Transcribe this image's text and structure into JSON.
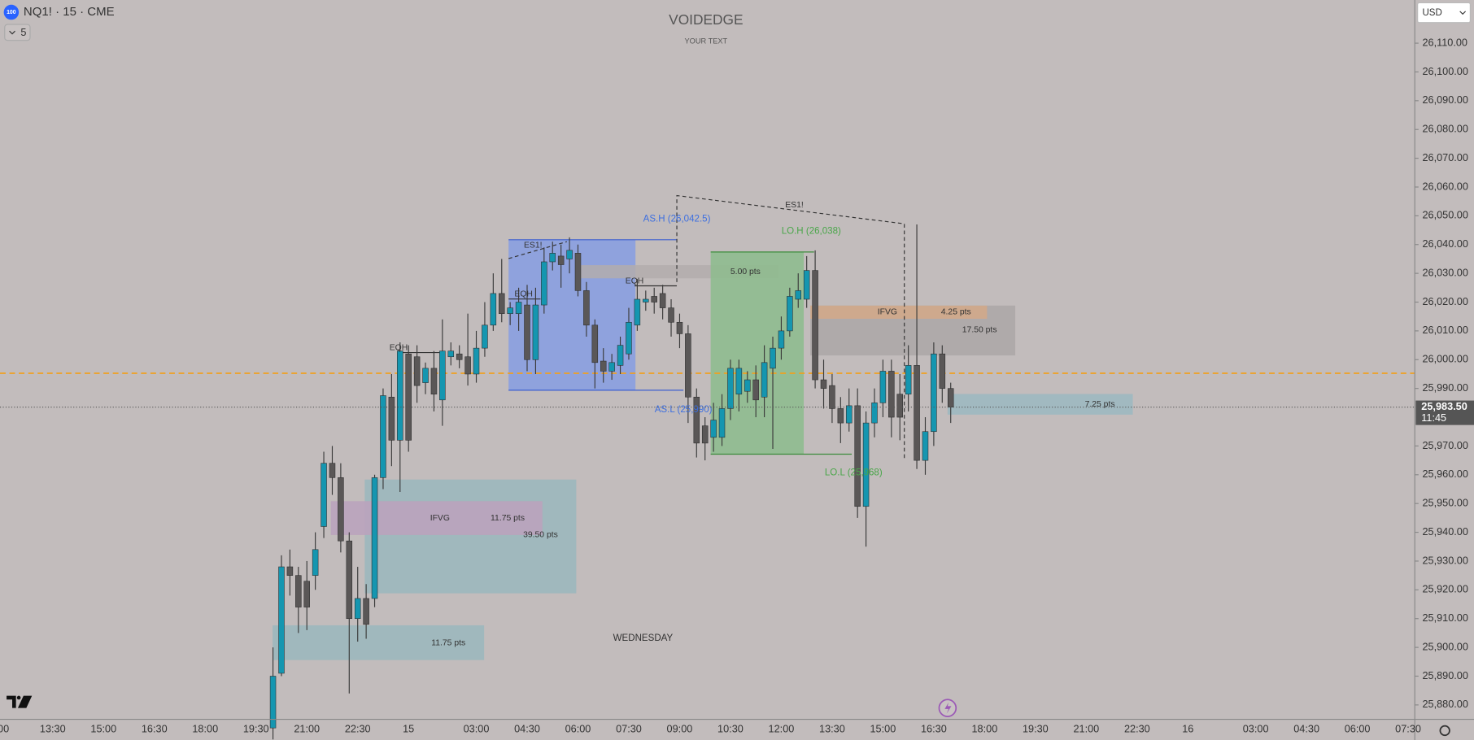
{
  "chart_data": {
    "type": "candlestick",
    "title": "VOIDEDGE",
    "subtitle": "YOUR TEXT",
    "symbol_badge": "100",
    "symbol": "NQ1! · 15 · CME",
    "interval_button": "5",
    "currency": "USD",
    "up_color": "#1596b0",
    "down_color": "#5a5757",
    "wick_color": "#3a3a3a",
    "ylim": [
      25875,
      26125
    ],
    "yticks": [
      {
        "value": 25880,
        "label": "25,880.00"
      },
      {
        "value": 25890,
        "label": "25,890.00"
      },
      {
        "value": 25900,
        "label": "25,900.00"
      },
      {
        "value": 25910,
        "label": "25,910.00"
      },
      {
        "value": 25920,
        "label": "25,920.00"
      },
      {
        "value": 25930,
        "label": "25,930.00"
      },
      {
        "value": 25940,
        "label": "25,940.00"
      },
      {
        "value": 25950,
        "label": "25,950.00"
      },
      {
        "value": 25960,
        "label": "25,960.00"
      },
      {
        "value": 25970,
        "label": "25,970.00"
      },
      {
        "value": 25990,
        "label": "25,990.00"
      },
      {
        "value": 26000,
        "label": "26,000.00"
      },
      {
        "value": 26010,
        "label": "26,010.00"
      },
      {
        "value": 26020,
        "label": "26,020.00"
      },
      {
        "value": 26030,
        "label": "26,030.00"
      },
      {
        "value": 26040,
        "label": "26,040.00"
      },
      {
        "value": 26050,
        "label": "26,050.00"
      },
      {
        "value": 26060,
        "label": "26,060.00"
      },
      {
        "value": 26070,
        "label": "26,070.00"
      },
      {
        "value": 26080,
        "label": "26,080.00"
      },
      {
        "value": 26090,
        "label": "26,090.00"
      },
      {
        "value": 26100,
        "label": "26,100.00"
      },
      {
        "value": 26110,
        "label": "26,110.00"
      }
    ],
    "last_price": {
      "value": 25983.5,
      "label": "25,983.50"
    },
    "countdown": "11:45",
    "categories": [
      ":00",
      null,
      null,
      null,
      null,
      null,
      "13:30",
      null,
      null,
      null,
      null,
      null,
      "15:00",
      null,
      null,
      null,
      null,
      null,
      "16:30",
      null,
      null,
      null,
      null,
      null,
      "18:00",
      null,
      null,
      null,
      null,
      null,
      "19:30",
      null,
      null,
      null,
      null,
      null,
      "21:00",
      null,
      null,
      null,
      null,
      null,
      "22:30",
      null,
      null,
      null,
      null,
      null,
      "15",
      null,
      null,
      null,
      null,
      null,
      null,
      null,
      "03:00",
      null,
      null,
      null,
      null,
      null,
      "04:30",
      null,
      null,
      null,
      null,
      null,
      "06:00",
      null,
      null,
      null,
      null,
      null,
      "07:30",
      null,
      null,
      null,
      null,
      null,
      "09:00",
      null,
      null,
      null,
      null,
      null,
      "10:30",
      null,
      null,
      null,
      null,
      null,
      "12:00",
      null,
      null,
      null,
      null,
      null,
      "13:30",
      null,
      null,
      null,
      null,
      null,
      "15:00",
      null,
      null,
      null,
      null,
      null,
      "16:30",
      null,
      null,
      null,
      null,
      null,
      "18:00",
      null,
      null,
      null,
      null,
      null,
      "19:30",
      null,
      null,
      null,
      null,
      null,
      "21:00",
      null,
      null,
      null,
      null,
      null,
      "22:30",
      null,
      null,
      null,
      null,
      null,
      "16",
      null,
      null,
      null,
      null,
      null,
      null,
      null,
      "03:00",
      null,
      null,
      null,
      null,
      null,
      "04:30",
      null,
      null,
      null,
      null,
      null,
      "06:00",
      null,
      null,
      null,
      null,
      null,
      "07:30"
    ],
    "open": [
      null,
      null,
      null,
      null,
      null,
      null,
      null,
      null,
      null,
      null,
      null,
      null,
      null,
      null,
      null,
      null,
      null,
      null,
      null,
      null,
      null,
      null,
      null,
      null,
      null,
      null,
      null,
      null,
      null,
      null,
      null,
      null,
      25872,
      25891,
      25928,
      25925,
      25923,
      25925,
      25942,
      25964,
      25959,
      25937,
      25910,
      25917,
      25917,
      25959,
      25987,
      25972,
      26002,
      26001,
      25992,
      25997,
      25986,
      26001,
      26002,
      26001,
      25995,
      26004,
      26012,
      26023,
      26016,
      26016,
      26019,
      26000,
      26019,
      26034,
      26036,
      26035,
      26037,
      26024,
      26012,
      25999.5,
      25996,
      25998,
      26002,
      26012,
      26020,
      26022,
      26023,
      26018,
      26013,
      26009,
      25987,
      25977,
      25973,
      25973,
      25983,
      25988,
      25989,
      25993,
      25987,
      25997,
      26004,
      26010,
      26021,
      26021,
      26031,
      25993,
      25991,
      25983,
      25978,
      25984,
      25949,
      25978,
      25985,
      25996,
      25988,
      25988,
      25998,
      25965,
      25975,
      26002,
      25990,
      null,
      null,
      null,
      null,
      null,
      null,
      null,
      null,
      null,
      null,
      null,
      null,
      null,
      null,
      null,
      null,
      null,
      null,
      null,
      null,
      null,
      null,
      null,
      null,
      null,
      null,
      null,
      null,
      null,
      null,
      null,
      null,
      null,
      null,
      null,
      null,
      null,
      null,
      null,
      null,
      null,
      null,
      null,
      null,
      null,
      null,
      null,
      null,
      null,
      null,
      null,
      null,
      null,
      null
    ],
    "high": [
      null,
      null,
      null,
      null,
      null,
      null,
      null,
      null,
      null,
      null,
      null,
      null,
      null,
      null,
      null,
      null,
      null,
      null,
      null,
      null,
      null,
      null,
      null,
      null,
      null,
      null,
      null,
      null,
      null,
      null,
      null,
      null,
      25900,
      25932,
      25934,
      25928,
      25930,
      25940,
      25968,
      25970,
      25964,
      25940,
      25928,
      25922,
      25960,
      25990,
      25995,
      26006,
      26005,
      26005,
      25999,
      26003,
      26014,
      26006,
      26005,
      26016,
      26010,
      26020,
      26030,
      26035,
      26020,
      26025,
      26026,
      26025,
      26039,
      26041,
      26040,
      26042.5,
      26040,
      26027,
      26014,
      26004,
      26002,
      26008,
      26018,
      26028,
      26024,
      26025,
      26026,
      26021,
      26016,
      26012,
      25990,
      25980,
      25985,
      25988,
      26000,
      26000,
      25996,
      25998,
      26005,
      26008,
      26015,
      26025,
      26030,
      26036,
      26038,
      26000,
      25995,
      25987,
      25990,
      25990,
      25982,
      25990,
      26000,
      26000,
      25995,
      26005,
      26047,
      25980,
      26006,
      26005,
      25992,
      null,
      null,
      null,
      null,
      null,
      null,
      null,
      null,
      null,
      null,
      null,
      null,
      null,
      null,
      null,
      null,
      null,
      null,
      null,
      null,
      null,
      null,
      null,
      null,
      null,
      null,
      null,
      null,
      null,
      null,
      null,
      null,
      null,
      null,
      null,
      null,
      null,
      null,
      null,
      null,
      null,
      null,
      null,
      null,
      null,
      null,
      null,
      null,
      null,
      null,
      null,
      null,
      null,
      null
    ],
    "low": [
      null,
      null,
      null,
      null,
      null,
      null,
      null,
      null,
      null,
      null,
      null,
      null,
      null,
      null,
      null,
      null,
      null,
      null,
      null,
      null,
      null,
      null,
      null,
      null,
      null,
      null,
      null,
      null,
      null,
      null,
      null,
      null,
      25868,
      25890,
      25918,
      25905,
      25906,
      25920,
      25938,
      25953,
      25933,
      25884,
      25902,
      25903,
      25914,
      25955,
      25963,
      25954,
      25968,
      25985,
      25988,
      25982,
      25977,
      25998,
      25997,
      25991,
      25992,
      26001,
      26010,
      26013,
      26012,
      26010,
      25996,
      25995,
      26016,
      26031,
      26025,
      26030,
      26022,
      26008,
      25990,
      25992,
      25993,
      25995,
      26000,
      26010,
      26017,
      26016,
      26014,
      26008,
      26004,
      25978,
      25966,
      25965,
      25968,
      25970,
      25979,
      25982,
      25985,
      25980,
      25980,
      25969,
      26000,
      26008,
      26018,
      26018,
      25990,
      25983,
      25978,
      25971,
      25975,
      25945,
      25935,
      25973,
      25980,
      25973,
      25972,
      25982,
      25962,
      25960,
      25970,
      25985,
      25978,
      null,
      null,
      null,
      null,
      null,
      null,
      null,
      null,
      null,
      null,
      null,
      null,
      null,
      null,
      null,
      null,
      null,
      null,
      null,
      null,
      null,
      null,
      null,
      null,
      null,
      null,
      null,
      null,
      null,
      null,
      null,
      null,
      null,
      null,
      null,
      null,
      null,
      null,
      null,
      null,
      null,
      null,
      null,
      null,
      null,
      null,
      null,
      null,
      null,
      null,
      null,
      null,
      null,
      null
    ],
    "close": [
      null,
      null,
      null,
      null,
      null,
      null,
      null,
      null,
      null,
      null,
      null,
      null,
      null,
      null,
      null,
      null,
      null,
      null,
      null,
      null,
      null,
      null,
      null,
      null,
      null,
      null,
      null,
      null,
      null,
      null,
      null,
      null,
      25890,
      25928,
      25925,
      25914,
      25914,
      25934,
      25964,
      25959,
      25937,
      25910,
      25917,
      25908,
      25959,
      25987.5,
      25972,
      26003,
      25972,
      25991,
      25997,
      25988,
      26003,
      26003,
      26000,
      25995,
      26004,
      26012,
      26023,
      26016,
      26018,
      26020,
      26000,
      26019,
      26034,
      26037,
      26033,
      26038,
      26024,
      26012,
      25999,
      25996,
      25999,
      26005,
      26013,
      26021,
      26021,
      26020,
      26018,
      26013,
      26009,
      25987,
      25971,
      25971,
      25979,
      25983,
      25997,
      25997,
      25993,
      25986,
      25999,
      26004,
      26010,
      26022,
      26024,
      26031,
      25993,
      25990,
      25983,
      25978,
      25984,
      25949,
      25978,
      25985,
      25996,
      25980,
      25980,
      25998,
      25965,
      25975,
      26002,
      25990,
      25983.5,
      null,
      null,
      null,
      null,
      null,
      null,
      null,
      null,
      null,
      null,
      null,
      null,
      null,
      null,
      null,
      null,
      null,
      null,
      null,
      null,
      null,
      null,
      null,
      null,
      null,
      null,
      null,
      null,
      null,
      null,
      null,
      null,
      null,
      null,
      null,
      null,
      null,
      null,
      null,
      null,
      null,
      null,
      null,
      null,
      null,
      null,
      null,
      null,
      null,
      null,
      null,
      null,
      null,
      null
    ],
    "annotations": [
      "AS.H (26,042.5)",
      "AS.L (25,990)",
      "LO.H (26,038)",
      "LO.L (25,968)",
      "ES1!",
      "ES1!",
      "EQH",
      "EQH",
      "EQH",
      "5.00 pts",
      "IFVG",
      "4.25 pts",
      "17.50 pts",
      "7.25 pts",
      "IFVG",
      "11.75 pts",
      "39.50 pts",
      "11.75 pts",
      "WEDNESDAY"
    ]
  }
}
